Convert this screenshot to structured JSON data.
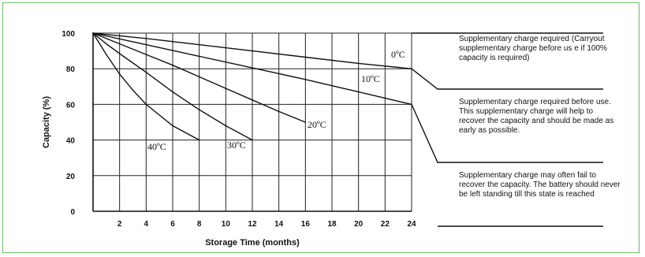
{
  "chart_data": {
    "type": "line",
    "xlabel": "Storage Time (months)",
    "ylabel": "Capacity (%)",
    "xlim": [
      0,
      24
    ],
    "ylim": [
      0,
      100
    ],
    "xticks": [
      2,
      4,
      6,
      8,
      10,
      12,
      14,
      16,
      18,
      20,
      22,
      24
    ],
    "yticks": [
      0,
      20,
      40,
      60,
      80,
      100
    ],
    "grid": true,
    "series": [
      {
        "name": "0ºC",
        "x": [
          0,
          4,
          8,
          12,
          16,
          20,
          24
        ],
        "y": [
          100,
          97,
          93.5,
          90,
          86.5,
          83,
          80
        ]
      },
      {
        "name": "10ºC",
        "x": [
          0,
          4,
          8,
          12,
          16,
          20,
          24
        ],
        "y": [
          100,
          93.5,
          87,
          80.5,
          74,
          67,
          60
        ]
      },
      {
        "name": "20ºC",
        "x": [
          0,
          2,
          4,
          6,
          8,
          10,
          12,
          14,
          16
        ],
        "y": [
          100,
          94,
          88,
          82,
          75.5,
          69,
          62.5,
          56,
          50
        ]
      },
      {
        "name": "30ºC",
        "x": [
          0,
          1,
          2,
          4,
          6,
          8,
          10,
          12
        ],
        "y": [
          100,
          94,
          88.5,
          78,
          67,
          57,
          48,
          40
        ]
      },
      {
        "name": "40ºC",
        "x": [
          0,
          1,
          2,
          3,
          4,
          6,
          8
        ],
        "y": [
          100,
          88,
          77,
          68,
          60,
          48,
          40
        ]
      }
    ],
    "zones": [
      {
        "text": "Supplementary charge required (Carryout supplementary charge before us e if 100%  capacity is required)"
      },
      {
        "text": "Supplementary charge required before use. This supplementary charge will help to recover the capacity and should be made as early as possible."
      },
      {
        "text": "Supplementary charge may often fail to recover the capacity. The battery should never be left standing till this state is reached"
      }
    ]
  }
}
